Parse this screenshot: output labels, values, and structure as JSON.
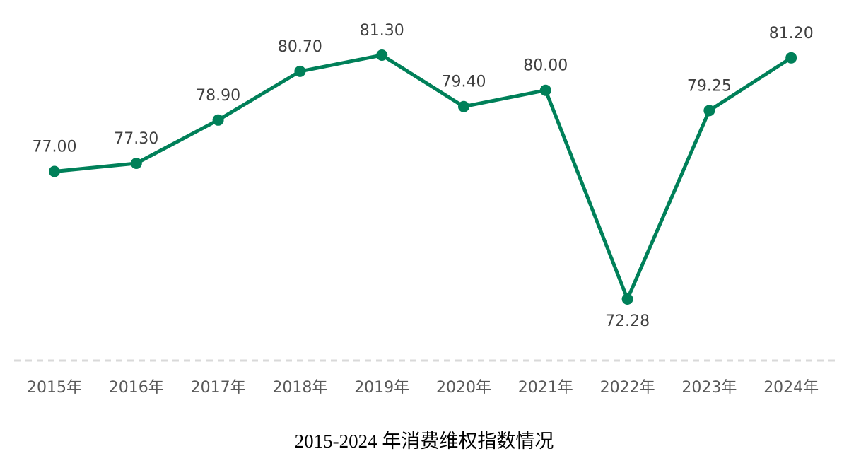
{
  "chart_data": {
    "type": "line",
    "title": "2015-2024 年消费维权指数情况",
    "categories": [
      "2015年",
      "2016年",
      "2017年",
      "2018年",
      "2019年",
      "2020年",
      "2021年",
      "2022年",
      "2023年",
      "2024年"
    ],
    "series": [
      {
        "values": [
          77.0,
          77.3,
          78.9,
          80.7,
          81.3,
          79.4,
          80.0,
          72.28,
          79.25,
          81.2
        ],
        "data_labels": [
          "77.00",
          "77.30",
          "78.90",
          "80.70",
          "81.30",
          "79.40",
          "80.00",
          "72.28",
          "79.25",
          "81.20"
        ],
        "color": "#008059"
      }
    ],
    "xlabel": "",
    "ylabel": "",
    "y_axis_visible": false,
    "grid": false,
    "baseline_style": "dashed",
    "colors": {
      "line": "#008059",
      "baseline": "#d9d9d9",
      "data_label": "#404040",
      "tick_label": "#595959",
      "title": "#000000"
    }
  }
}
